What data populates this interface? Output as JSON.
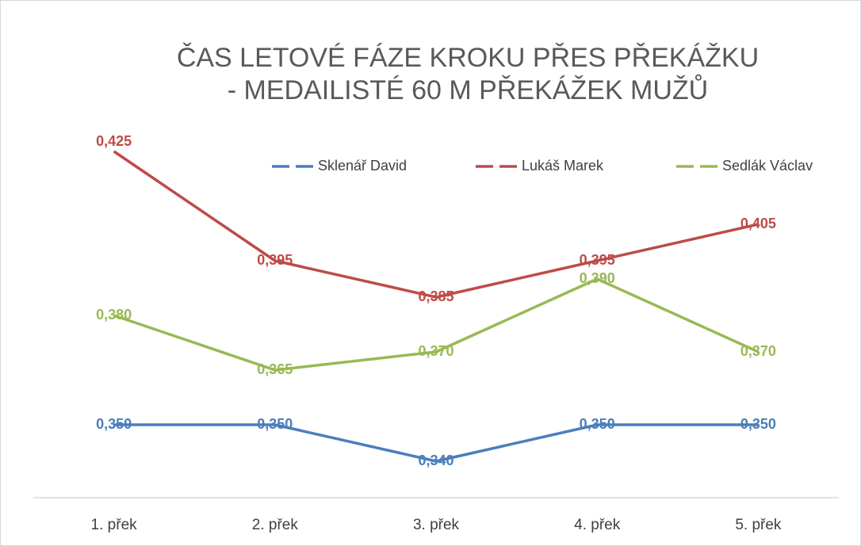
{
  "chart_data": {
    "type": "line",
    "title": "ČAS LETOVÉ FÁZE KROKU PŘES PŘEKÁŽKU",
    "subtitle": "- MEDAILISTÉ 60 M PŘEKÁŽEK MUŽŮ",
    "categories": [
      "1. přek",
      "2. přek",
      "3. přek",
      "4. přek",
      "5. přek"
    ],
    "ylim": [
      0.33,
      0.43
    ],
    "legend": "top",
    "series": [
      {
        "name": "Sklenář David",
        "color": "#4a7ebb",
        "values": [
          0.35,
          0.35,
          0.34,
          0.35,
          0.35
        ],
        "value_labels": [
          "0,350",
          "0,350",
          "0,340",
          "0,350",
          "0,350"
        ]
      },
      {
        "name": "Lukáš Marek",
        "color": "#be4b48",
        "values": [
          0.425,
          0.395,
          0.385,
          0.395,
          0.405
        ],
        "value_labels": [
          "0,425",
          "0,395",
          "0,385",
          "0,395",
          "0,405"
        ]
      },
      {
        "name": "Sedlák Václav",
        "color": "#98b954",
        "values": [
          0.38,
          0.365,
          0.37,
          0.39,
          0.37
        ],
        "value_labels": [
          "0,380",
          "0,365",
          "0,370",
          "0,390",
          "0,370"
        ]
      }
    ]
  }
}
